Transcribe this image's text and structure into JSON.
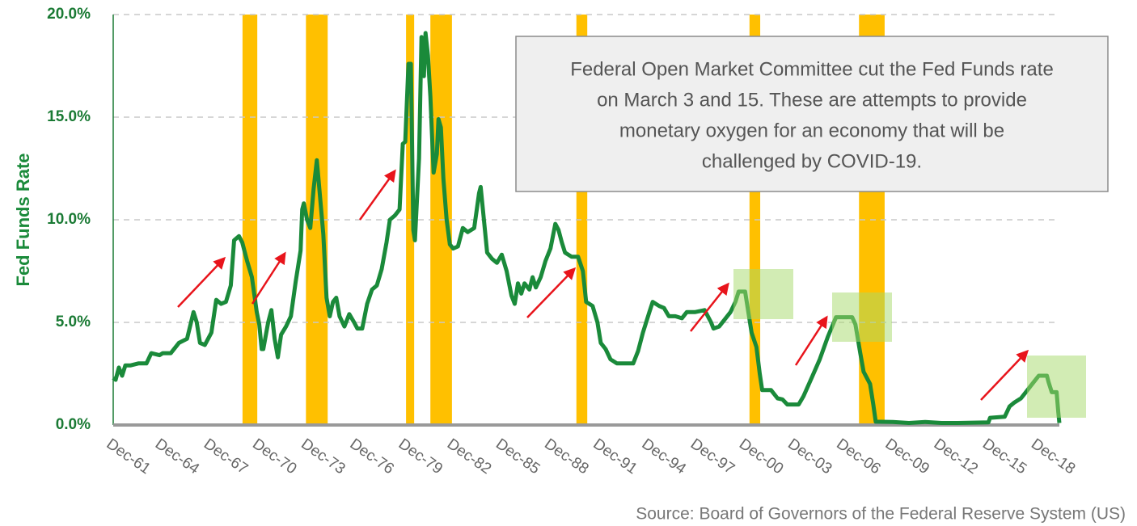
{
  "chart_data": {
    "type": "line",
    "y_label": "Fed Funds Rate",
    "source": "Source: Board of Governors of the Federal Reserve System (US)",
    "annotation": [
      "Federal Open Market Committee cut the Fed Funds rate",
      "on March 3 and 15.  These are attempts to provide",
      "monetary oxygen for an economy that will be",
      "challenged by COVID-19."
    ],
    "color": "#1a8a3a",
    "recession_color": "#ffc000",
    "recessions": [
      [
        1969.92,
        1970.83
      ],
      [
        1973.83,
        1975.17
      ],
      [
        1980.0,
        1980.5
      ],
      [
        1981.5,
        1982.83
      ],
      [
        1990.5,
        1991.17
      ],
      [
        2001.17,
        2001.83
      ],
      [
        2007.92,
        2009.5
      ]
    ],
    "xlim": [
      1961.95,
      2020.27
    ],
    "ylim": [
      0,
      20
    ],
    "yticks": [
      {
        "value": 0,
        "label": "0.0%"
      },
      {
        "value": 5,
        "label": "5.0%"
      },
      {
        "value": 10,
        "label": "10.0%"
      },
      {
        "value": 15,
        "label": "15.0%"
      },
      {
        "value": 20,
        "label": "20.0%"
      }
    ],
    "xticks": [
      {
        "value": 1961.92,
        "label": "Dec-61"
      },
      {
        "value": 1964.92,
        "label": "Dec-64"
      },
      {
        "value": 1967.92,
        "label": "Dec-67"
      },
      {
        "value": 1970.92,
        "label": "Dec-70"
      },
      {
        "value": 1973.92,
        "label": "Dec-73"
      },
      {
        "value": 1976.92,
        "label": "Dec-76"
      },
      {
        "value": 1979.92,
        "label": "Dec-79"
      },
      {
        "value": 1982.92,
        "label": "Dec-82"
      },
      {
        "value": 1985.92,
        "label": "Dec-85"
      },
      {
        "value": 1988.92,
        "label": "Dec-88"
      },
      {
        "value": 1991.92,
        "label": "Dec-91"
      },
      {
        "value": 1994.92,
        "label": "Dec-94"
      },
      {
        "value": 1997.92,
        "label": "Dec-97"
      },
      {
        "value": 2000.92,
        "label": "Dec-00"
      },
      {
        "value": 2003.92,
        "label": "Dec-03"
      },
      {
        "value": 2006.92,
        "label": "Dec-06"
      },
      {
        "value": 2009.92,
        "label": "Dec-09"
      },
      {
        "value": 2012.92,
        "label": "Dec-12"
      },
      {
        "value": 2015.92,
        "label": "Dec-15"
      },
      {
        "value": 2018.92,
        "label": "Dec-18"
      }
    ],
    "grid": true,
    "x": [
      1961.95,
      1962.1,
      1962.3,
      1962.5,
      1962.7,
      1963.0,
      1963.5,
      1964.0,
      1964.3,
      1964.8,
      1965.0,
      1965.5,
      1966.0,
      1966.5,
      1966.9,
      1967.1,
      1967.3,
      1967.6,
      1968.0,
      1968.3,
      1968.6,
      1968.9,
      1969.2,
      1969.4,
      1969.7,
      1969.9,
      1970.2,
      1970.5,
      1970.8,
      1970.95,
      1971.1,
      1971.2,
      1971.5,
      1971.7,
      1971.9,
      1972.1,
      1972.3,
      1972.6,
      1972.9,
      1973.2,
      1973.5,
      1973.6,
      1973.7,
      1973.9,
      1974.1,
      1974.3,
      1974.5,
      1974.6,
      1974.9,
      1975.1,
      1975.3,
      1975.5,
      1975.7,
      1975.9,
      1976.2,
      1976.5,
      1976.8,
      1977.0,
      1977.3,
      1977.6,
      1977.9,
      1978.2,
      1978.5,
      1978.8,
      1979.0,
      1979.3,
      1979.6,
      1979.8,
      1979.95,
      1980.15,
      1980.3,
      1980.45,
      1980.55,
      1980.8,
      1980.95,
      1981.1,
      1981.2,
      1981.35,
      1981.5,
      1981.7,
      1981.9,
      1982.0,
      1982.15,
      1982.3,
      1982.5,
      1982.7,
      1982.9,
      1983.2,
      1983.5,
      1983.8,
      1984.2,
      1984.5,
      1984.6,
      1984.8,
      1985.0,
      1985.3,
      1985.6,
      1985.9,
      1986.2,
      1986.5,
      1986.7,
      1986.9,
      1987.1,
      1987.3,
      1987.6,
      1987.8,
      1988.0,
      1988.3,
      1988.6,
      1988.9,
      1989.2,
      1989.4,
      1989.6,
      1989.8,
      1990.2,
      1990.6,
      1990.9,
      1991.1,
      1991.5,
      1991.8,
      1992.0,
      1992.3,
      1992.6,
      1993.0,
      1993.5,
      1994.0,
      1994.3,
      1994.6,
      1995.0,
      1995.2,
      1995.6,
      1995.9,
      1996.2,
      1996.6,
      1997.0,
      1997.3,
      1997.8,
      1998.4,
      1998.8,
      1998.95,
      1999.3,
      1999.7,
      2000.0,
      2000.3,
      2000.5,
      2000.9,
      2001.1,
      2001.3,
      2001.6,
      2001.8,
      2001.95,
      2002.5,
      2002.9,
      2003.2,
      2003.5,
      2004.2,
      2004.5,
      2005.0,
      2005.5,
      2006.0,
      2006.5,
      2007.5,
      2007.7,
      2008.0,
      2008.2,
      2008.6,
      2008.8,
      2008.95,
      2010.0,
      2011.0,
      2012.0,
      2013.0,
      2014.0,
      2015.9,
      2016.0,
      2016.9,
      2017.2,
      2017.5,
      2017.9,
      2018.2,
      2018.5,
      2018.8,
      2019.0,
      2019.5,
      2019.6,
      2019.8,
      2020.1,
      2020.2,
      2020.27
    ],
    "values": [
      2.3,
      2.2,
      2.8,
      2.4,
      2.9,
      2.9,
      3.0,
      3.0,
      3.5,
      3.4,
      3.5,
      3.5,
      4.0,
      4.2,
      5.5,
      5.0,
      4.0,
      3.9,
      4.5,
      6.1,
      5.9,
      6.0,
      6.8,
      9.0,
      9.2,
      8.9,
      8.0,
      7.2,
      5.5,
      4.9,
      3.7,
      3.7,
      5.0,
      5.6,
      4.2,
      3.3,
      4.4,
      4.8,
      5.3,
      7.0,
      8.5,
      10.5,
      10.8,
      10.0,
      9.6,
      11.5,
      12.9,
      12.0,
      9.3,
      6.2,
      5.3,
      6.0,
      6.2,
      5.3,
      4.8,
      5.4,
      5.0,
      4.7,
      4.7,
      5.9,
      6.6,
      6.8,
      7.6,
      8.9,
      10.0,
      10.2,
      10.5,
      13.7,
      13.8,
      17.6,
      17.6,
      9.5,
      9.0,
      13.0,
      18.9,
      17.0,
      19.1,
      18.0,
      16.0,
      12.3,
      13.2,
      14.9,
      14.5,
      12.0,
      10.0,
      8.8,
      8.6,
      8.7,
      9.6,
      9.4,
      9.6,
      11.3,
      11.6,
      10.0,
      8.4,
      8.1,
      7.9,
      8.3,
      7.5,
      6.3,
      5.9,
      6.9,
      6.4,
      6.9,
      6.6,
      7.2,
      6.7,
      7.2,
      8.0,
      8.6,
      9.8,
      9.5,
      8.9,
      8.4,
      8.2,
      8.2,
      7.5,
      6.0,
      5.8,
      5.0,
      4.0,
      3.7,
      3.2,
      3.0,
      3.0,
      3.0,
      3.6,
      4.5,
      5.5,
      6.0,
      5.8,
      5.7,
      5.3,
      5.3,
      5.2,
      5.5,
      5.5,
      5.6,
      5.0,
      4.7,
      4.8,
      5.2,
      5.5,
      6.0,
      6.5,
      6.5,
      5.5,
      4.5,
      3.8,
      2.5,
      1.7,
      1.7,
      1.3,
      1.25,
      1.0,
      1.0,
      1.4,
      2.3,
      3.2,
      4.3,
      5.25,
      5.25,
      4.9,
      3.5,
      2.6,
      2.0,
      1.0,
      0.16,
      0.15,
      0.1,
      0.15,
      0.1,
      0.1,
      0.13,
      0.35,
      0.4,
      0.9,
      1.1,
      1.3,
      1.6,
      1.9,
      2.2,
      2.4,
      2.4,
      2.1,
      1.6,
      1.6,
      0.65,
      0.1
    ]
  }
}
